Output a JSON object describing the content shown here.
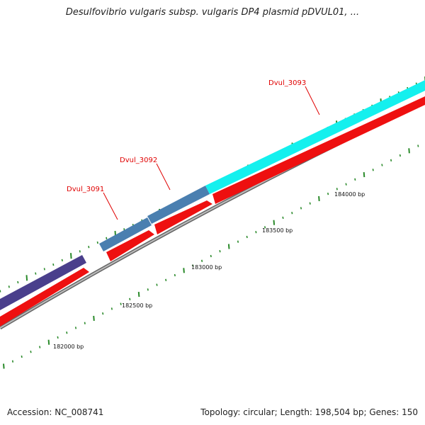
{
  "header": {
    "title": "Desulfovibrio vulgaris subsp. vulgaris DP4 plasmid pDVUL01, ..."
  },
  "footer": {
    "accession": "Accession: NC_008741",
    "summary": "Topology: circular; Length: 198,504 bp; Genes: 150"
  },
  "genes": [
    {
      "label": "Dvul_3091"
    },
    {
      "label": "Dvul_3092"
    },
    {
      "label": "Dvul_3093"
    }
  ],
  "ruler": {
    "labels": [
      "182000 bp",
      "182500 bp",
      "183000 bp",
      "183500 bp",
      "184000 bp"
    ]
  },
  "colors": {
    "gene_dark": "#4a3f8c",
    "gene_steel": "#4a7fb0",
    "gene_cyan": "#14f0ee",
    "cds_red": "#ee1010",
    "backbone": "#888888",
    "tick_green": "#2a8a2a",
    "label_red": "#e00000"
  }
}
